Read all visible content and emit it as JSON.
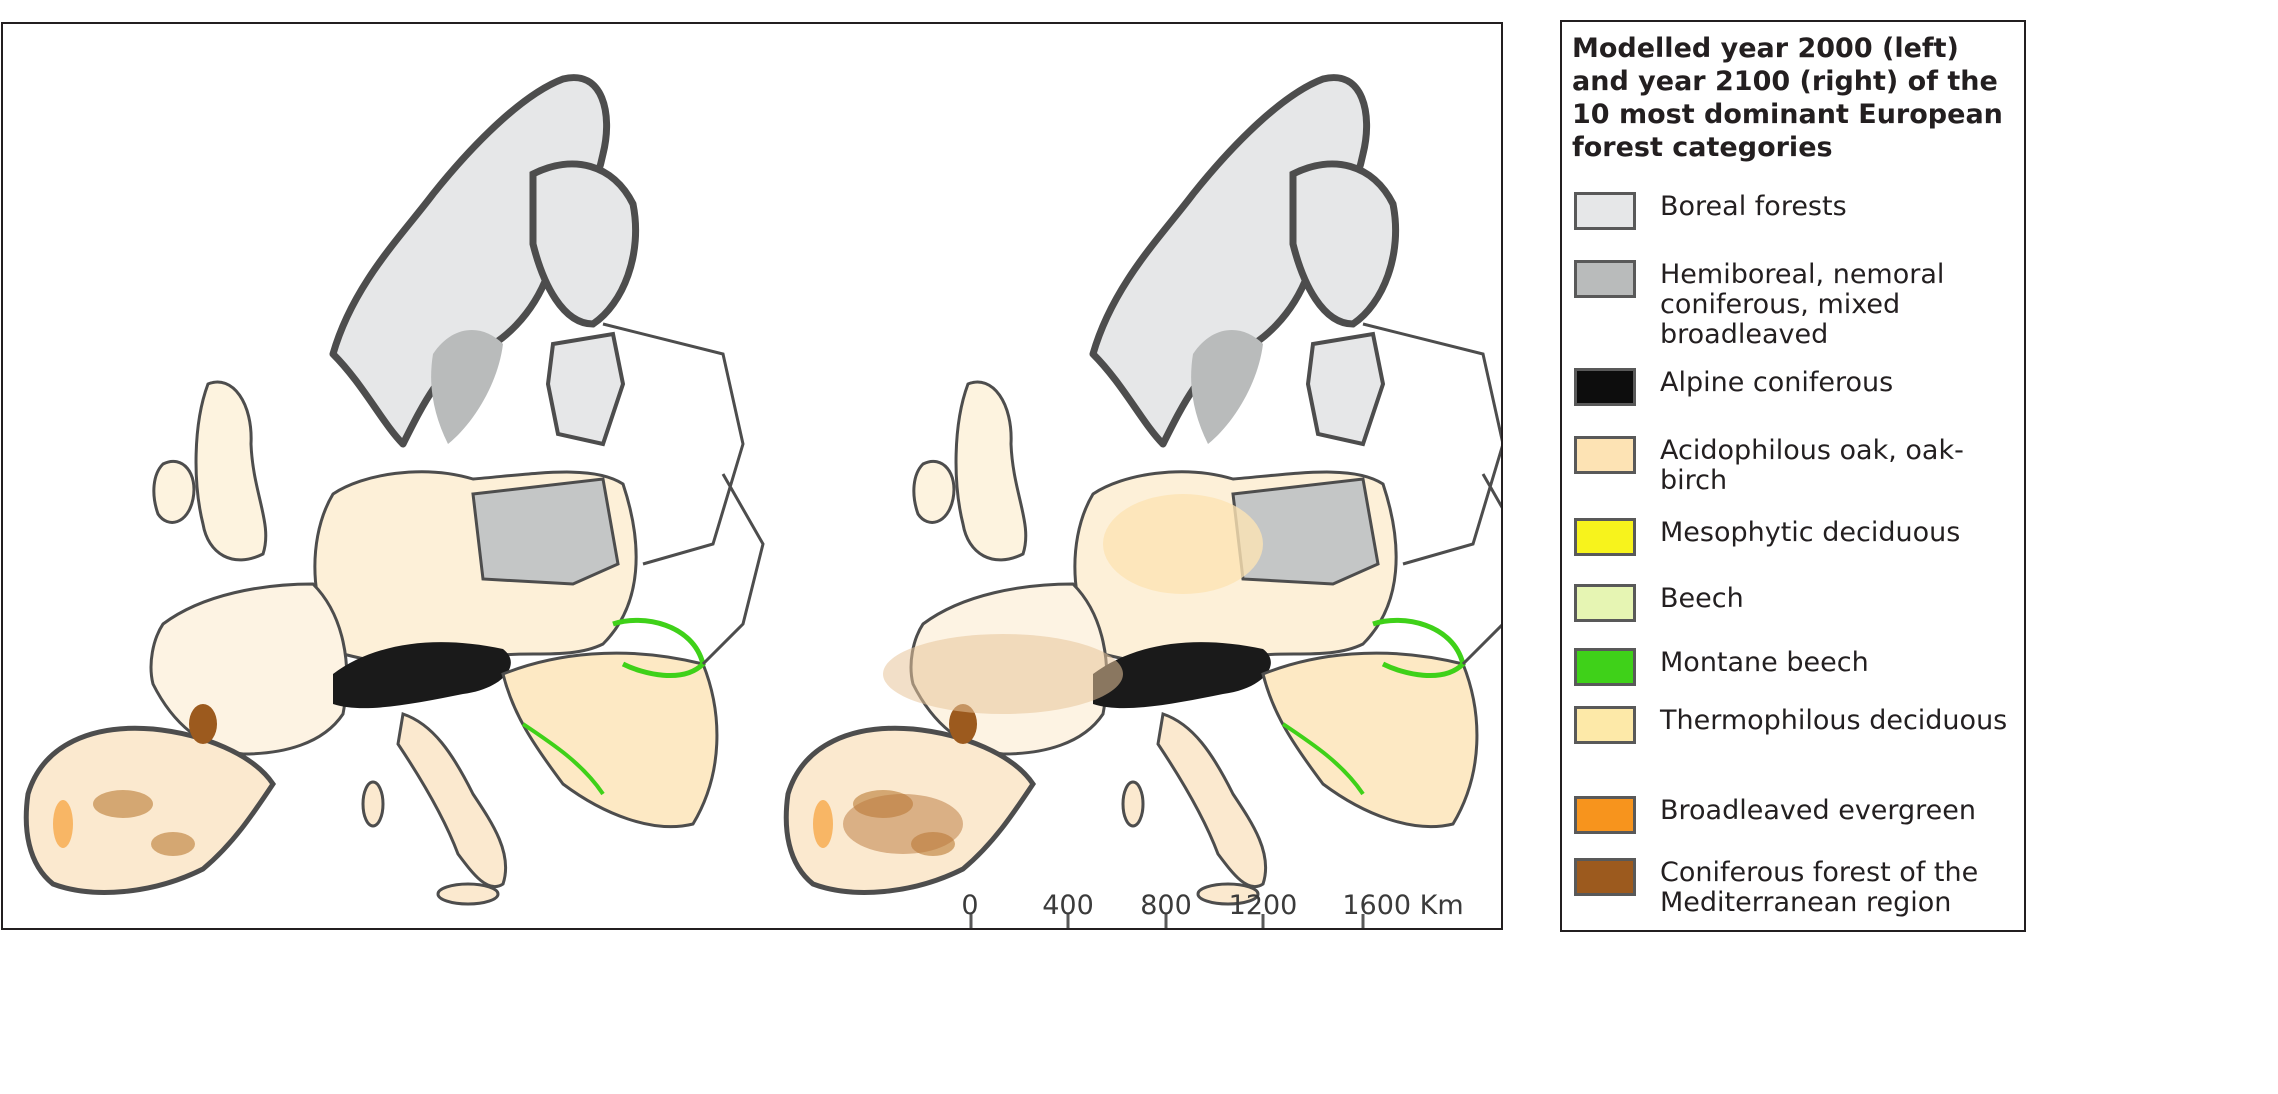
{
  "legend": {
    "title": "Modelled year 2000 (left) and year 2100 (right) of the 10 most dominant European forest categories",
    "items": [
      {
        "label": "Boreal forests",
        "color": "#e6e7e8"
      },
      {
        "label": "Hemiboreal, nemoral coniferous, mixed broadleaved",
        "color": "#b9bbbb"
      },
      {
        "label": "Alpine coniferous",
        "color": "#0d0d0d"
      },
      {
        "label": "Acidophilous oak, oak-birch",
        "color": "#fde3b4"
      },
      {
        "label": "Mesophytic deciduous",
        "color": "#f7f31c"
      },
      {
        "label": "Beech",
        "color": "#e6f5b3"
      },
      {
        "label": "Montane beech",
        "color": "#3fd119"
      },
      {
        "label": "Thermophilous deciduous",
        "color": "#fde9a8"
      },
      {
        "label": "Broadleaved evergreen",
        "color": "#f7941d"
      },
      {
        "label": "Coniferous forest of the Mediterranean region",
        "color": "#9c5a1e"
      }
    ]
  },
  "scale_bar": {
    "labels": [
      "0",
      "400",
      "800",
      "1200",
      "1600 Km"
    ]
  },
  "maps": [
    {
      "year": "2000"
    },
    {
      "year": "2100"
    }
  ]
}
